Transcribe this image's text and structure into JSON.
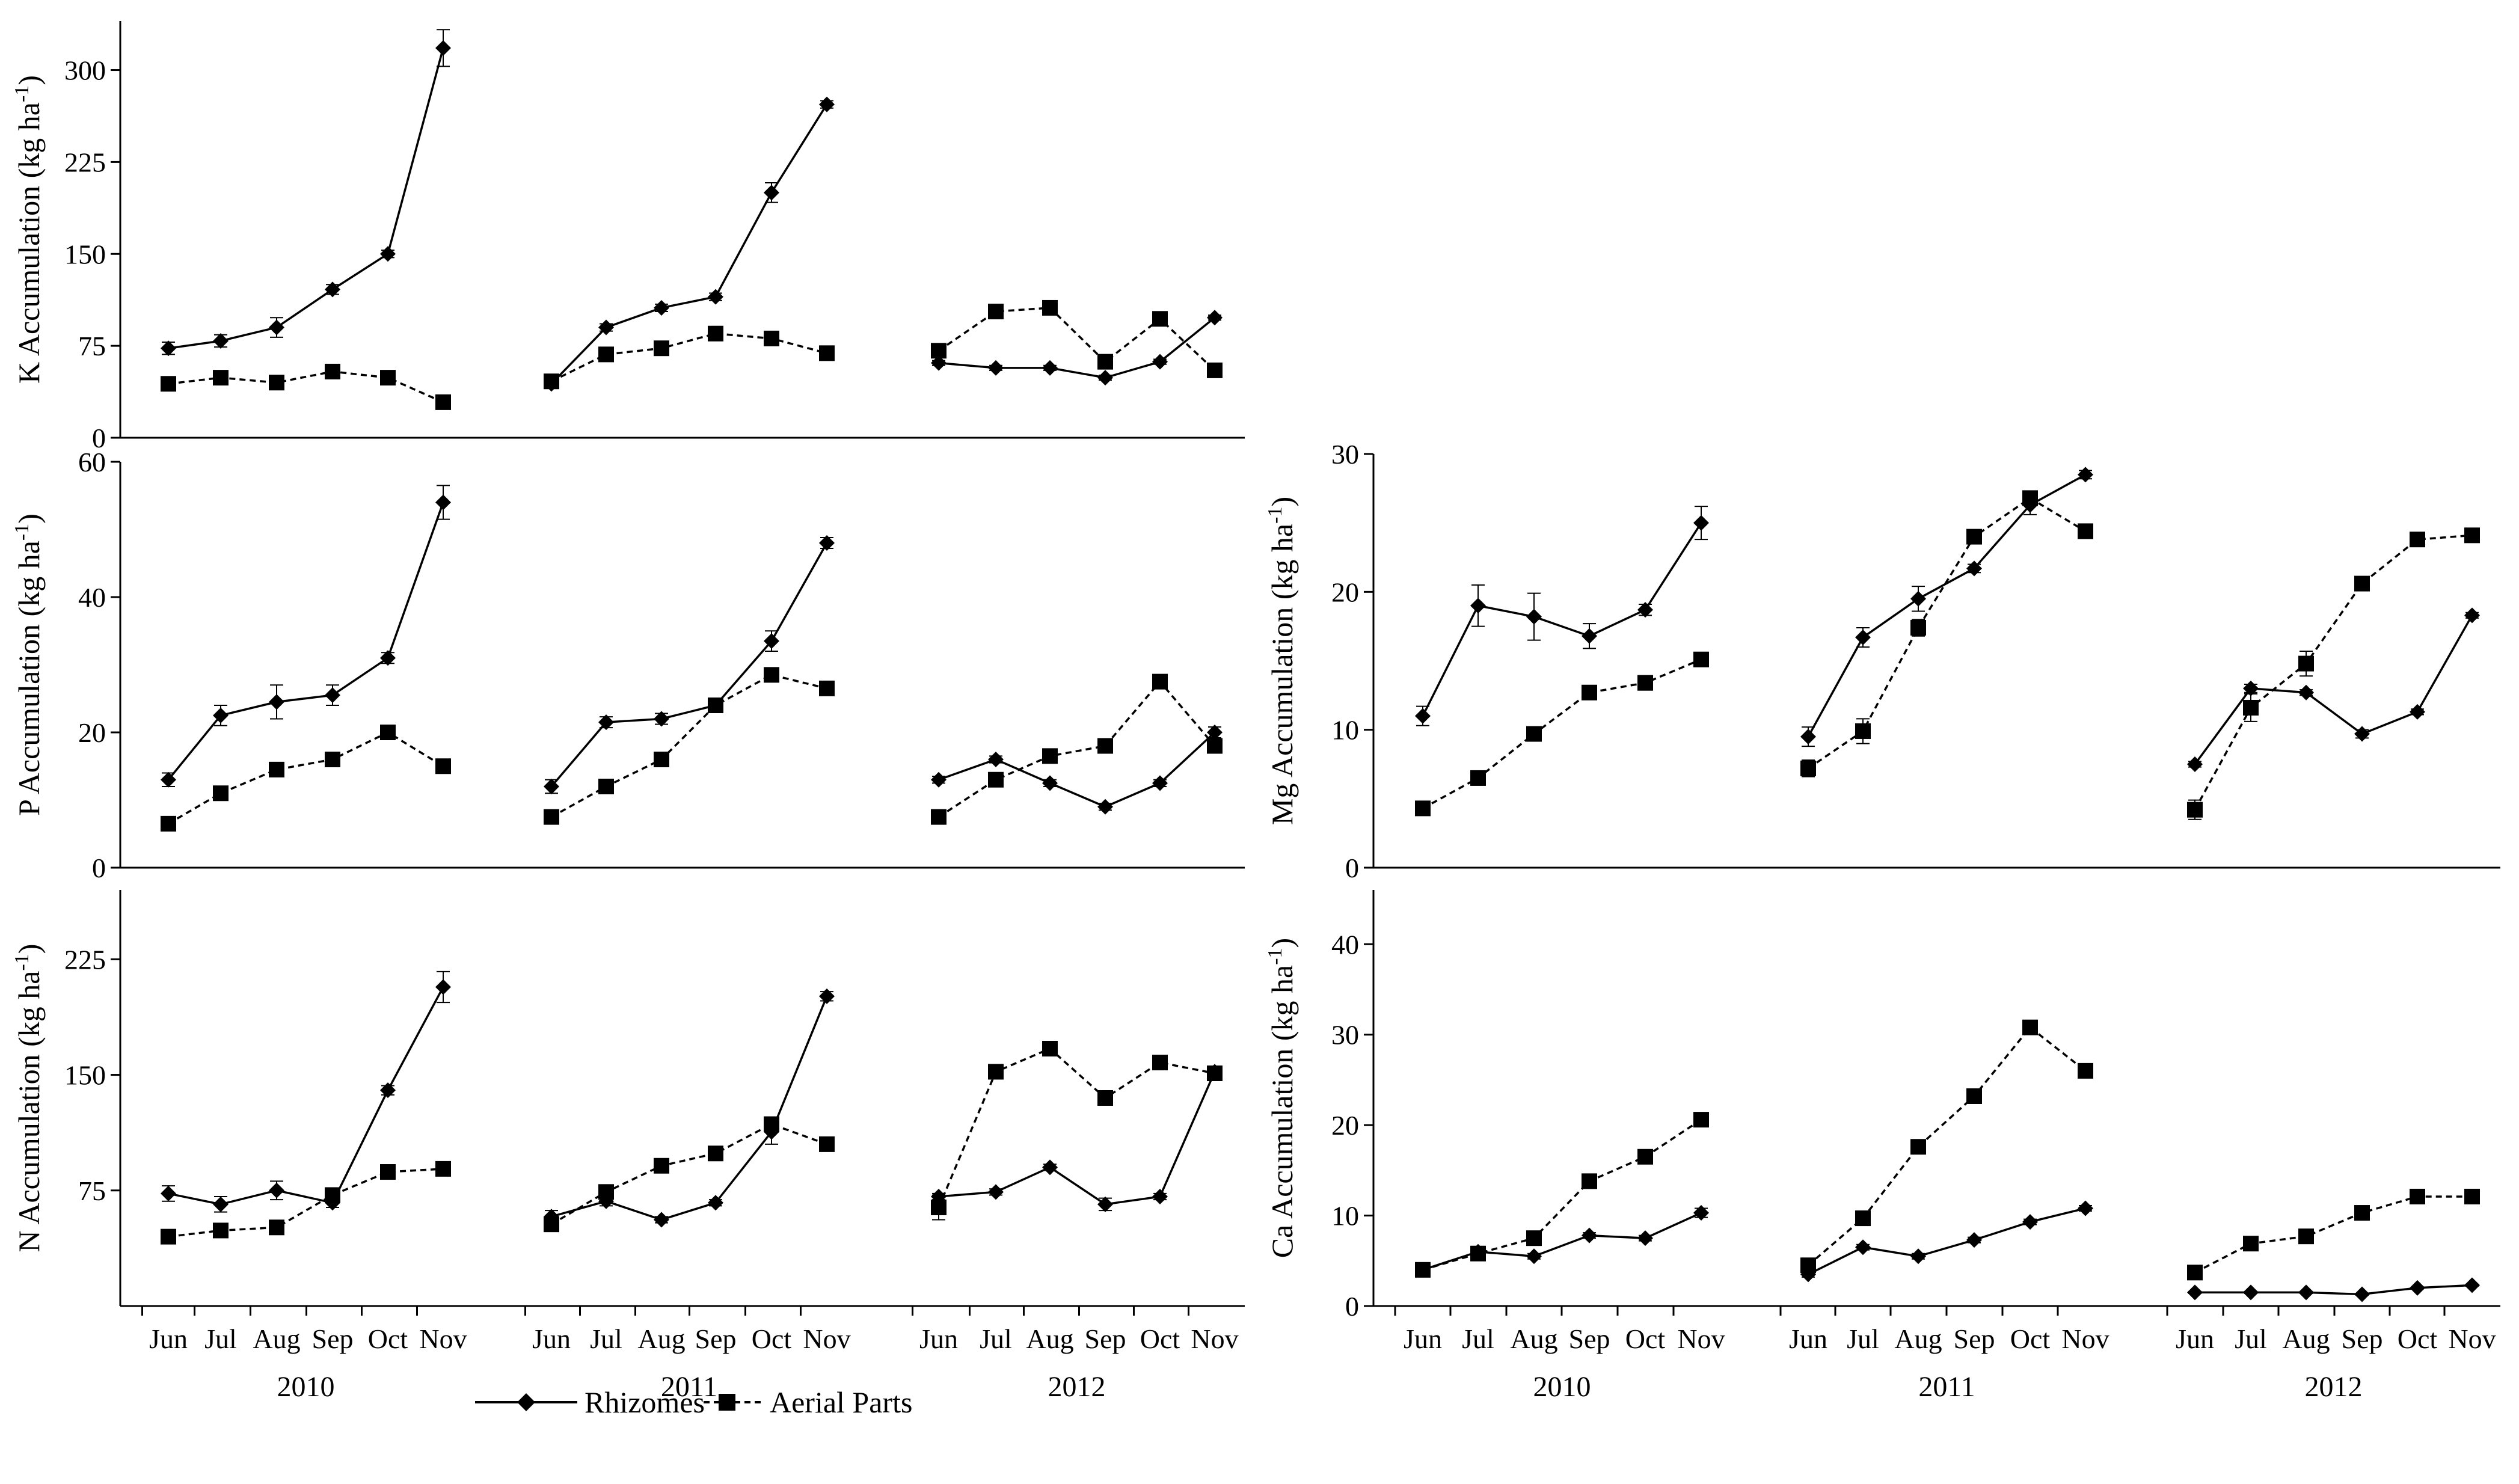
{
  "chart_data": [
    {
      "type": "line",
      "panel": "K",
      "ylabel": "K Accumulation (kg ha-1)",
      "ylim": [
        0,
        340
      ],
      "yticks": [
        0,
        75,
        150,
        225,
        300
      ],
      "years": [
        "2010",
        "2011",
        "2012"
      ],
      "months": [
        "Jun",
        "Jul",
        "Aug",
        "Sep",
        "Oct",
        "Nov"
      ],
      "series": [
        {
          "name": "Rhizomes",
          "values": [
            [
              73,
              79,
              90,
              121,
              150,
              318
            ],
            [
              44,
              90,
              106,
              115,
              200,
              272
            ],
            [
              61,
              57,
              57,
              49,
              62,
              98
            ]
          ],
          "err": [
            [
              5,
              5,
              8,
              4,
              3,
              15
            ],
            [
              2,
              3,
              3,
              3,
              8,
              3
            ],
            [
              2,
              2,
              2,
              2,
              2,
              2
            ]
          ]
        },
        {
          "name": "Aerial Parts",
          "values": [
            [
              44,
              49,
              45,
              54,
              49,
              29
            ],
            [
              46,
              68,
              73,
              85,
              81,
              69
            ],
            [
              71,
              103,
              106,
              62,
              97,
              55
            ]
          ],
          "err": [
            [
              2,
              2,
              2,
              2,
              2,
              3
            ],
            [
              2,
              3,
              2,
              2,
              2,
              2
            ],
            [
              3,
              2,
              2,
              2,
              2,
              2
            ]
          ]
        }
      ]
    },
    {
      "type": "line",
      "panel": "P",
      "ylabel": "P Accumulation (kg ha-1)",
      "ylim": [
        0,
        60
      ],
      "yticks": [
        0,
        20,
        40,
        60
      ],
      "years": [
        "2010",
        "2011",
        "2012"
      ],
      "months": [
        "Jun",
        "Jul",
        "Aug",
        "Sep",
        "Oct",
        "Nov"
      ],
      "series": [
        {
          "name": "Rhizomes",
          "values": [
            [
              13.0,
              22.5,
              24.5,
              25.5,
              31.0,
              54.0
            ],
            [
              12.0,
              21.5,
              22.0,
              24.0,
              33.5,
              48.0
            ],
            [
              13.0,
              16.0,
              12.5,
              9.0,
              12.5,
              20.0
            ]
          ],
          "err": [
            [
              1,
              1.5,
              2.5,
              1.5,
              0.8,
              2.5
            ],
            [
              1,
              0.8,
              0.8,
              0.8,
              1.5,
              0.8
            ],
            [
              0.5,
              0.5,
              0.5,
              0.5,
              0.5,
              0.8
            ]
          ]
        },
        {
          "name": "Aerial Parts",
          "values": [
            [
              6.5,
              11.0,
              14.5,
              16.0,
              20.0,
              15.0
            ],
            [
              7.5,
              12.0,
              16.0,
              24.0,
              28.5,
              26.5
            ],
            [
              7.5,
              13.0,
              16.5,
              18.0,
              27.5,
              18.0
            ]
          ],
          "err": [
            [
              0.5,
              0.5,
              0.5,
              0.5,
              0.5,
              0.5
            ],
            [
              0.5,
              0.5,
              0.5,
              0.5,
              0.5,
              0.5
            ],
            [
              0.5,
              0.5,
              0.5,
              0.5,
              0.5,
              0.5
            ]
          ]
        }
      ]
    },
    {
      "type": "line",
      "panel": "N",
      "ylabel": "N Accumulation (kg ha-1)",
      "ylim": [
        0,
        270
      ],
      "yticks": [
        75,
        150,
        225
      ],
      "years": [
        "2010",
        "2011",
        "2012"
      ],
      "months": [
        "Jun",
        "Jul",
        "Aug",
        "Sep",
        "Oct",
        "Nov"
      ],
      "series": [
        {
          "name": "Rhizomes",
          "values": [
            [
              73,
              66,
              75,
              67,
              140,
              207
            ],
            [
              58,
              68,
              56,
              67,
              113,
              201
            ],
            [
              71,
              74,
              90,
              66,
              71,
              152
            ]
          ],
          "err": [
            [
              5,
              5,
              6,
              3,
              3,
              10
            ],
            [
              4,
              3,
              2,
              2,
              8,
              3
            ],
            [
              2,
              2,
              2,
              4,
              2,
              2
            ]
          ]
        },
        {
          "name": "Aerial Parts",
          "values": [
            [
              45,
              49,
              51,
              72,
              87,
              89
            ],
            [
              53,
              74,
              91,
              99,
              118,
              105
            ],
            [
              64,
              152,
              167,
              135,
              158,
              151
            ]
          ],
          "err": [
            [
              2,
              2,
              2,
              3,
              2,
              2
            ],
            [
              2,
              3,
              2,
              2,
              3,
              2
            ],
            [
              8,
              4,
              3,
              2,
              2,
              2
            ]
          ]
        }
      ]
    },
    {
      "type": "line",
      "panel": "Mg",
      "ylabel": "Mg Accumulation (kg ha-1)",
      "ylim": [
        0,
        30
      ],
      "yticks": [
        0,
        10,
        20,
        30
      ],
      "years": [
        "2010",
        "2011",
        "2012"
      ],
      "months": [
        "Jun",
        "Jul",
        "Aug",
        "Sep",
        "Oct",
        "Nov"
      ],
      "series": [
        {
          "name": "Rhizomes",
          "values": [
            [
              11.0,
              19.0,
              18.2,
              16.8,
              18.7,
              25.0
            ],
            [
              9.5,
              16.7,
              19.5,
              21.7,
              26.3,
              28.5
            ],
            [
              7.5,
              13.0,
              12.7,
              9.7,
              11.3,
              18.3
            ]
          ],
          "err": [
            [
              0.7,
              1.5,
              1.7,
              0.9,
              0.4,
              1.2
            ],
            [
              0.7,
              0.7,
              0.9,
              0.3,
              0.7,
              0.3
            ],
            [
              0.2,
              0.3,
              0.2,
              0.3,
              0.2,
              0.2
            ]
          ]
        },
        {
          "name": "Aerial Parts",
          "values": [
            [
              4.3,
              6.5,
              9.7,
              12.7,
              13.4,
              15.1
            ],
            [
              7.2,
              9.9,
              17.4,
              24.0,
              26.8,
              24.4
            ],
            [
              4.2,
              11.6,
              14.8,
              20.6,
              23.8,
              24.1
            ]
          ],
          "err": [
            [
              0.2,
              0.2,
              0.2,
              0.5,
              0.2,
              0.2
            ],
            [
              0.6,
              0.9,
              0.6,
              0.3,
              0.3,
              0.2
            ],
            [
              0.7,
              1.0,
              0.9,
              0.3,
              0.2,
              0.2
            ]
          ]
        }
      ]
    },
    {
      "type": "line",
      "panel": "Ca",
      "ylabel": "Ca Accumulation (kg ha-1)",
      "ylim": [
        0,
        46
      ],
      "yticks": [
        0,
        10,
        20,
        30,
        40
      ],
      "years": [
        "2010",
        "2011",
        "2012"
      ],
      "months": [
        "Jun",
        "Jul",
        "Aug",
        "Sep",
        "Oct",
        "Nov"
      ],
      "series": [
        {
          "name": "Rhizomes",
          "values": [
            [
              4.0,
              6.0,
              5.5,
              7.8,
              7.5,
              10.3
            ],
            [
              3.5,
              6.5,
              5.5,
              7.3,
              9.3,
              10.8
            ],
            [
              1.5,
              1.5,
              1.5,
              1.3,
              2.0,
              2.3
            ]
          ],
          "err": [
            [
              0.3,
              0.3,
              0.3,
              0.3,
              0.3,
              0.5
            ],
            [
              0.3,
              0.3,
              0.3,
              0.3,
              0.3,
              0.3
            ],
            [
              0.1,
              0.1,
              0.1,
              0.1,
              0.1,
              0.1
            ]
          ]
        },
        {
          "name": "Aerial Parts",
          "values": [
            [
              4.0,
              5.8,
              7.5,
              13.8,
              16.5,
              20.6
            ],
            [
              4.5,
              9.7,
              17.6,
              23.2,
              30.8,
              26.0
            ],
            [
              3.7,
              6.9,
              7.7,
              10.3,
              12.1,
              12.1
            ]
          ],
          "err": [
            [
              0.3,
              0.3,
              0.3,
              0.3,
              0.3,
              0.3
            ],
            [
              0.3,
              0.5,
              0.3,
              0.3,
              0.5,
              0.3
            ],
            [
              0.2,
              0.2,
              0.2,
              0.2,
              0.2,
              0.2
            ]
          ]
        }
      ]
    }
  ],
  "legend": {
    "rhizomes": "Rhizomes",
    "aerial": "Aerial Parts"
  },
  "colors": {
    "line": "#000000",
    "background": "#ffffff"
  }
}
